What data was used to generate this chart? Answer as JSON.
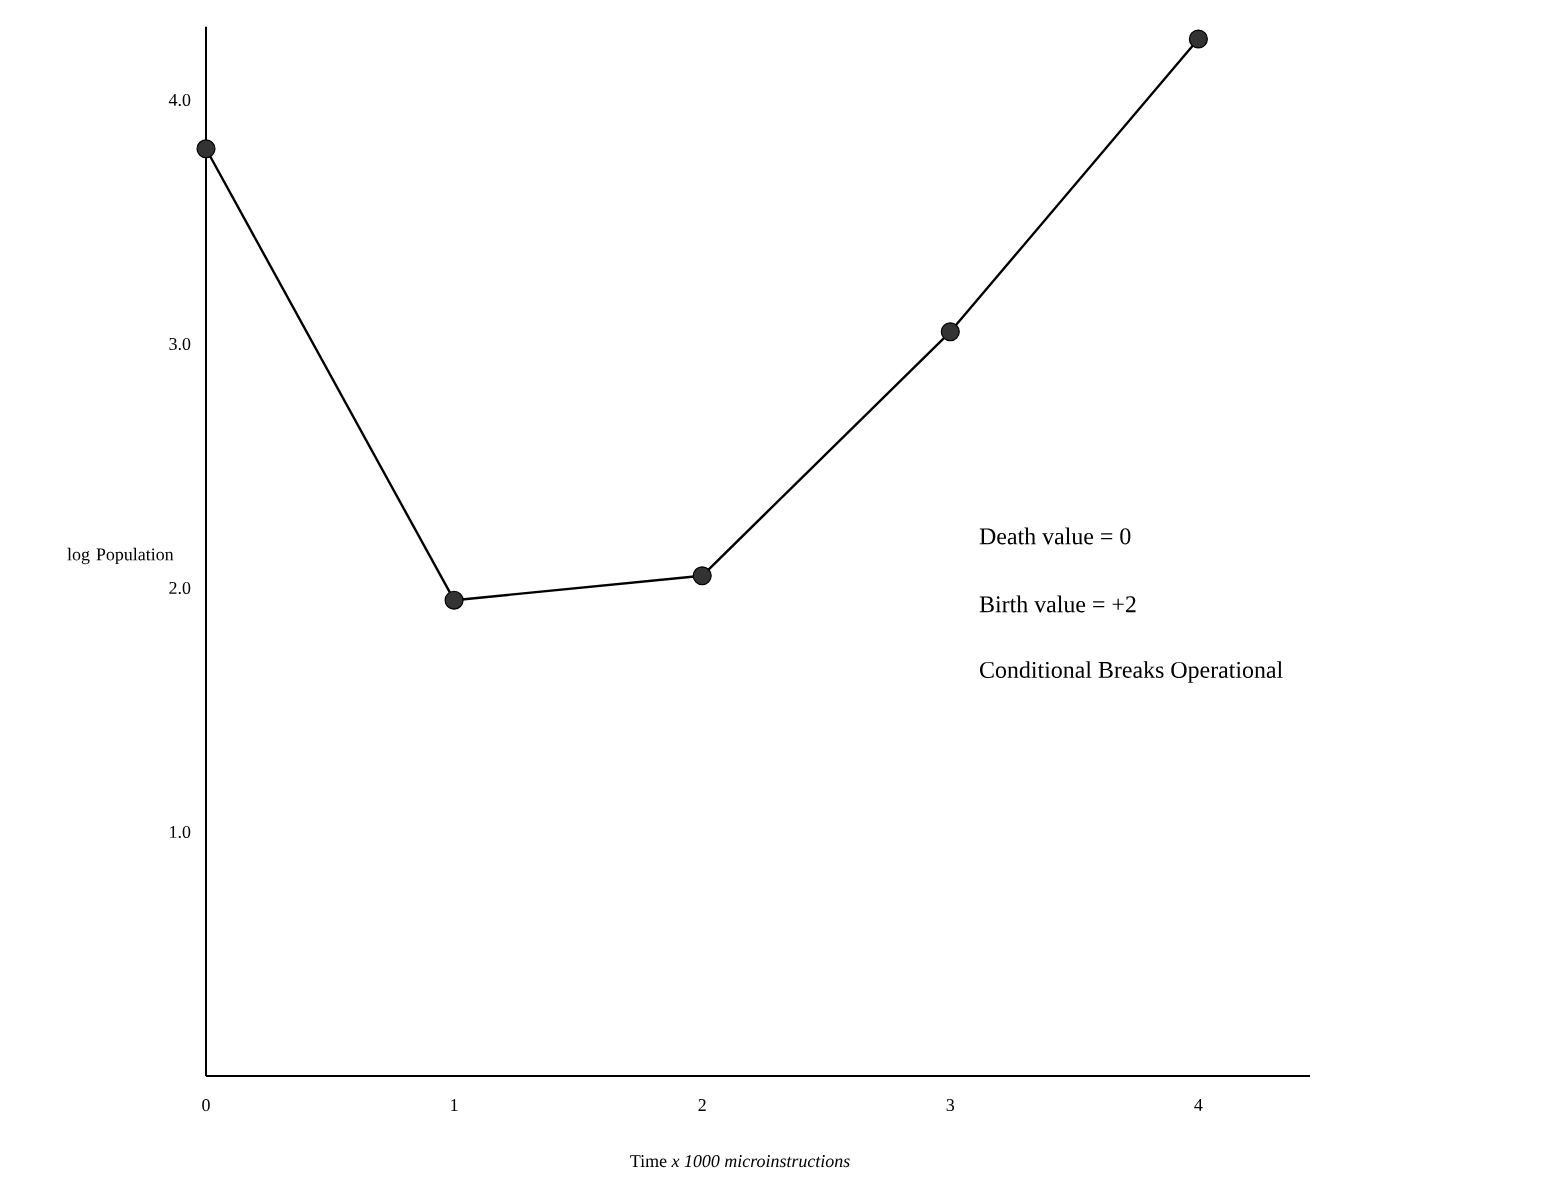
{
  "chart_data": {
    "type": "line",
    "xlabel": "Time  *x 1000 microinstructions*",
    "ylabel": "log Population",
    "x": [
      0,
      1,
      2,
      3,
      4
    ],
    "values": [
      3.8,
      1.95,
      2.05,
      3.05,
      4.25
    ],
    "color": "#333333",
    "marker": "circle",
    "line_style": "solid",
    "grid": false,
    "xlim": [
      0,
      4.45
    ],
    "ylim": [
      0,
      4.3
    ],
    "xticks": [
      0,
      1,
      2,
      3,
      4
    ],
    "yticks": [
      {
        "value": 1,
        "label": "1.0"
      },
      {
        "value": 2,
        "label": "2.0"
      },
      {
        "value": 3,
        "label": "3.0"
      },
      {
        "value": 4,
        "label": "4.0"
      }
    ],
    "annotations": [
      "Death value = 0",
      "Birth value = +2",
      "Conditional Breaks Operational"
    ]
  }
}
